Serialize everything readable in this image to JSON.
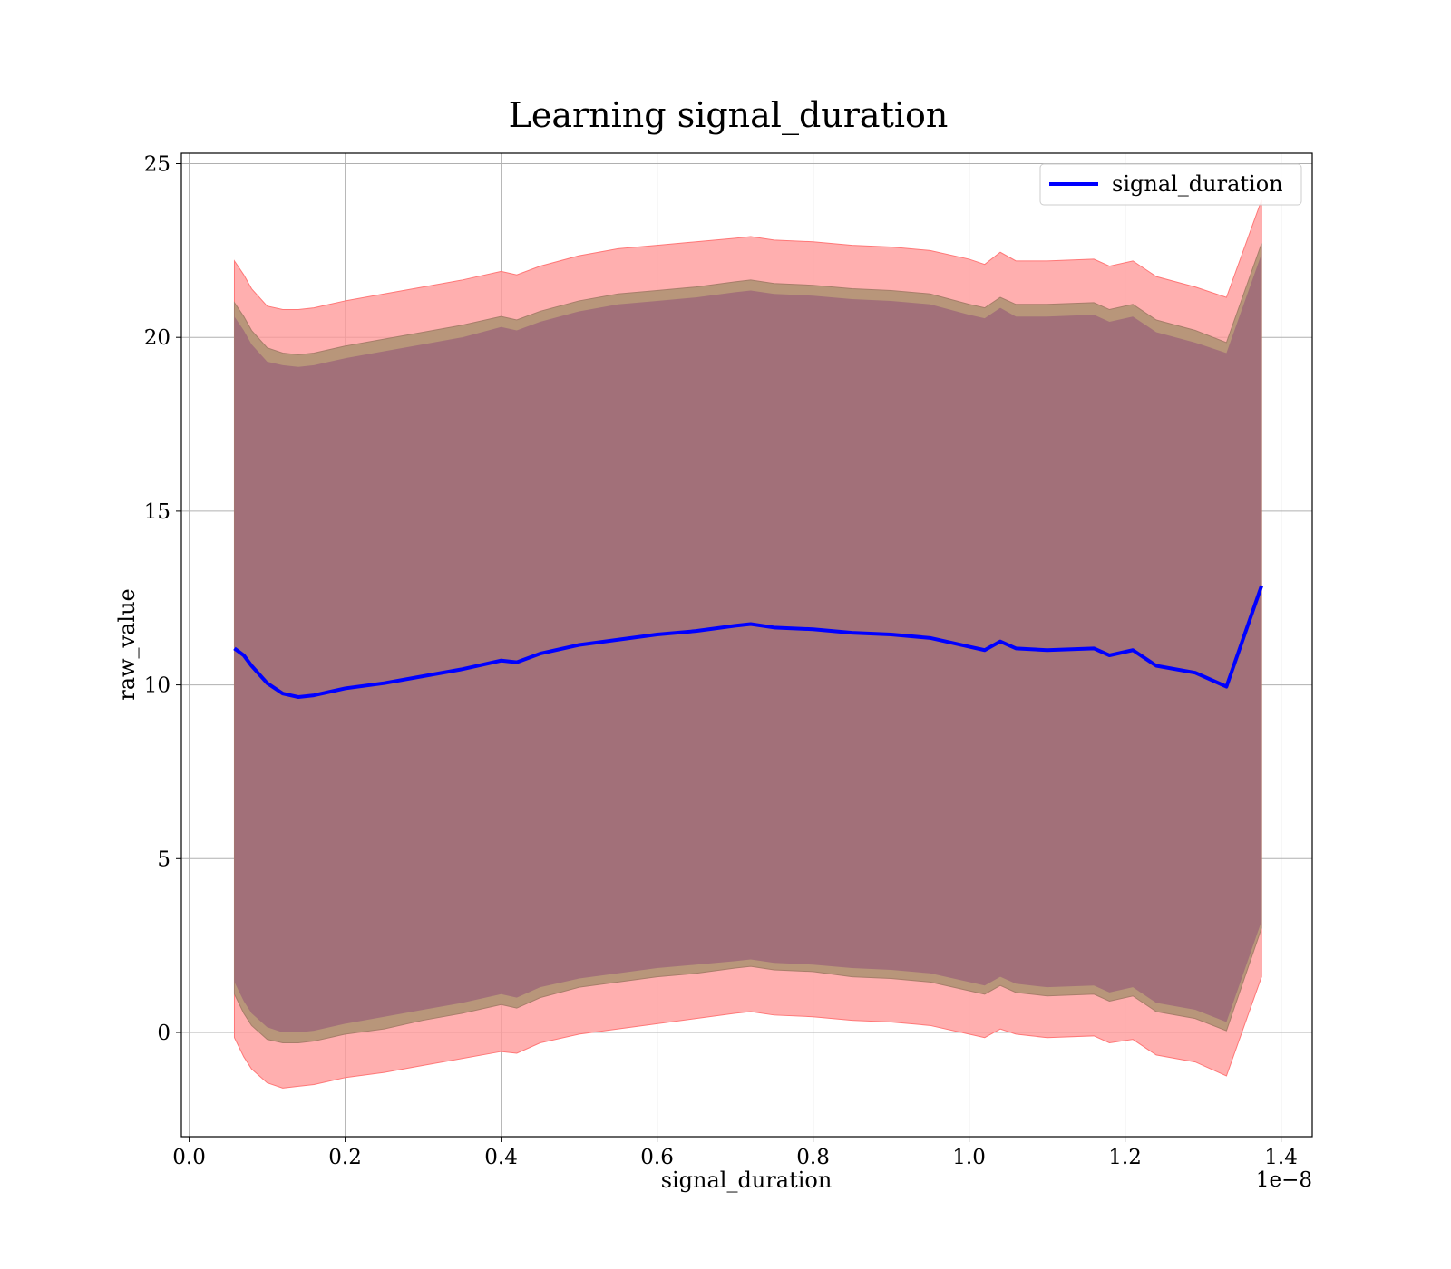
{
  "chart_data": {
    "type": "area",
    "title": "Learning signal_duration",
    "xlabel": "signal_duration",
    "ylabel": "raw_value",
    "x_scale_label": "1e−8",
    "xlim": [
      -0.01,
      1.44
    ],
    "ylim": [
      -3.0,
      25.3
    ],
    "x_ticks": [
      0.0,
      0.2,
      0.4,
      0.6,
      0.8,
      1.0,
      1.2,
      1.4
    ],
    "x_tick_labels": [
      "0.0",
      "0.2",
      "0.4",
      "0.6",
      "0.8",
      "1.0",
      "1.2",
      "1.4"
    ],
    "y_ticks": [
      0,
      5,
      10,
      15,
      20,
      25
    ],
    "y_tick_labels": [
      "0",
      "5",
      "10",
      "15",
      "20",
      "25"
    ],
    "grid": true,
    "legend_position": "top-right",
    "colors": {
      "line": "#0000ff",
      "outer_band": "#ff9999",
      "middle_band": "#b8967a",
      "inner_band": "#a27079"
    },
    "x": [
      0.058,
      0.07,
      0.08,
      0.1,
      0.12,
      0.14,
      0.16,
      0.18,
      0.2,
      0.25,
      0.3,
      0.35,
      0.4,
      0.42,
      0.45,
      0.5,
      0.55,
      0.6,
      0.65,
      0.7,
      0.72,
      0.75,
      0.8,
      0.85,
      0.9,
      0.95,
      1.0,
      1.02,
      1.04,
      1.06,
      1.1,
      1.16,
      1.18,
      1.21,
      1.24,
      1.29,
      1.33,
      1.375
    ],
    "series": [
      {
        "name": "signal_duration",
        "values": [
          11.05,
          10.85,
          10.55,
          10.05,
          9.75,
          9.65,
          9.7,
          9.8,
          9.9,
          10.05,
          10.25,
          10.45,
          10.7,
          10.65,
          10.9,
          11.15,
          11.3,
          11.45,
          11.55,
          11.7,
          11.75,
          11.65,
          11.6,
          11.5,
          11.45,
          11.35,
          11.1,
          11.0,
          11.25,
          11.05,
          11.0,
          11.05,
          10.85,
          11.0,
          10.55,
          10.35,
          9.95,
          12.85
        ]
      }
    ],
    "bands": [
      {
        "role": "outer",
        "upper": [
          22.2,
          21.8,
          21.4,
          20.9,
          20.8,
          20.8,
          20.85,
          20.95,
          21.05,
          21.25,
          21.45,
          21.65,
          21.9,
          21.8,
          22.05,
          22.35,
          22.55,
          22.65,
          22.75,
          22.85,
          22.9,
          22.8,
          22.75,
          22.65,
          22.6,
          22.5,
          22.25,
          22.1,
          22.45,
          22.2,
          22.2,
          22.25,
          22.05,
          22.2,
          21.75,
          21.45,
          21.15,
          23.95
        ],
        "lower": [
          -0.15,
          -0.7,
          -1.05,
          -1.45,
          -1.6,
          -1.55,
          -1.5,
          -1.4,
          -1.3,
          -1.15,
          -0.95,
          -0.75,
          -0.55,
          -0.6,
          -0.3,
          -0.05,
          0.1,
          0.25,
          0.4,
          0.55,
          0.6,
          0.5,
          0.45,
          0.35,
          0.3,
          0.2,
          -0.05,
          -0.15,
          0.1,
          -0.05,
          -0.15,
          -0.1,
          -0.3,
          -0.2,
          -0.65,
          -0.85,
          -1.25,
          1.6
        ]
      },
      {
        "role": "middle",
        "upper": [
          21.0,
          20.6,
          20.2,
          19.7,
          19.55,
          19.5,
          19.55,
          19.65,
          19.75,
          19.95,
          20.15,
          20.35,
          20.6,
          20.5,
          20.75,
          21.05,
          21.25,
          21.35,
          21.45,
          21.6,
          21.65,
          21.55,
          21.5,
          21.4,
          21.35,
          21.25,
          20.95,
          20.85,
          21.15,
          20.95,
          20.95,
          21.0,
          20.8,
          20.95,
          20.5,
          20.2,
          19.85,
          22.7
        ]
      },
      {
        "role": "middle",
        "lower": [
          1.1,
          0.55,
          0.2,
          -0.2,
          -0.3,
          -0.3,
          -0.25,
          -0.15,
          -0.05,
          0.1,
          0.35,
          0.55,
          0.8,
          0.7,
          1.0,
          1.3,
          1.45,
          1.6,
          1.7,
          1.85,
          1.9,
          1.8,
          1.75,
          1.6,
          1.55,
          1.45,
          1.2,
          1.1,
          1.35,
          1.15,
          1.05,
          1.1,
          0.9,
          1.05,
          0.6,
          0.4,
          0.05,
          3.0
        ]
      },
      {
        "role": "inner",
        "upper": [
          20.6,
          20.2,
          19.8,
          19.3,
          19.2,
          19.15,
          19.2,
          19.3,
          19.4,
          19.6,
          19.8,
          20.0,
          20.3,
          20.2,
          20.45,
          20.75,
          20.95,
          21.05,
          21.15,
          21.3,
          21.35,
          21.25,
          21.2,
          21.1,
          21.05,
          20.95,
          20.65,
          20.55,
          20.85,
          20.6,
          20.6,
          20.65,
          20.45,
          20.6,
          20.15,
          19.85,
          19.55,
          22.4
        ],
        "lower": [
          1.45,
          0.9,
          0.55,
          0.15,
          0.0,
          0.0,
          0.05,
          0.15,
          0.25,
          0.45,
          0.65,
          0.85,
          1.1,
          1.0,
          1.3,
          1.55,
          1.7,
          1.85,
          1.95,
          2.05,
          2.1,
          2.0,
          1.95,
          1.85,
          1.8,
          1.7,
          1.45,
          1.35,
          1.6,
          1.4,
          1.3,
          1.35,
          1.15,
          1.3,
          0.85,
          0.65,
          0.3,
          3.2
        ]
      }
    ]
  },
  "legend": {
    "label": "signal_duration"
  }
}
